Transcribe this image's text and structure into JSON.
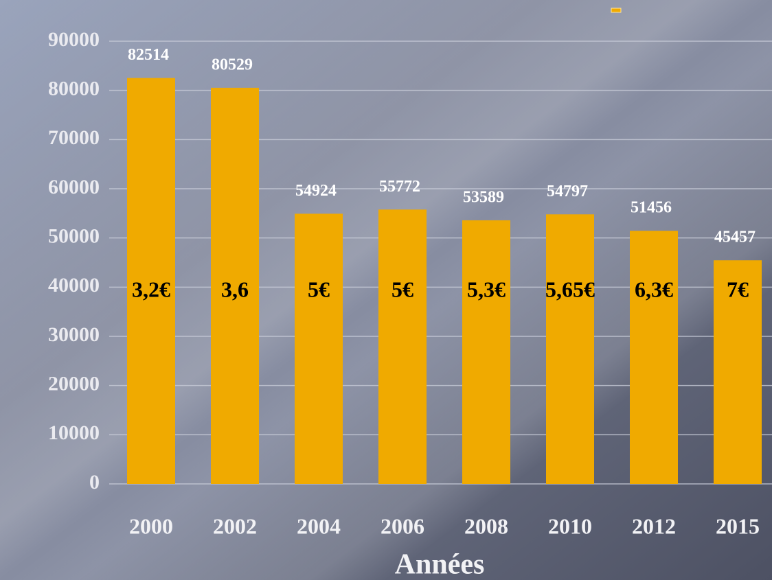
{
  "chart_data": {
    "type": "bar",
    "x_label": "Années",
    "categories": [
      "2000",
      "2002",
      "2004",
      "2006",
      "2008",
      "2010",
      "2012",
      "2015"
    ],
    "values": [
      82514,
      80529,
      54924,
      55772,
      53589,
      54797,
      51456,
      45457
    ],
    "annotations": [
      "3,2€",
      "3,6",
      "5€",
      "5€",
      "5,3€",
      "5,65€",
      "6,3€",
      "7€"
    ],
    "color": "#f0aa00",
    "ylim": [
      0,
      90000
    ],
    "yticks": [
      0,
      10000,
      20000,
      30000,
      40000,
      50000,
      60000,
      70000,
      80000,
      90000
    ],
    "grid": true
  }
}
